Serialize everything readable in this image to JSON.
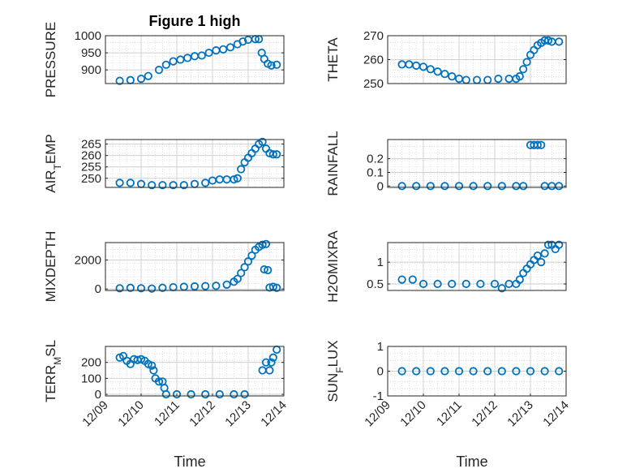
{
  "figure_title": "Figure 1 high",
  "marker_color": "#0072BD",
  "chart_data": [
    {
      "type": "scatter",
      "title": "Figure 1 high",
      "ylabel": "PRESSURE",
      "xlabel": "",
      "xlim": [
        0,
        5
      ],
      "ylim": [
        860,
        1000
      ],
      "yticks": [
        900,
        950,
        1000
      ],
      "yticklabels": [
        "900",
        "950",
        "1000"
      ],
      "xticks": [],
      "xticklabels": [],
      "grid": true,
      "points": [
        [
          0.4,
          868
        ],
        [
          0.7,
          870
        ],
        [
          1.0,
          874
        ],
        [
          1.2,
          882
        ],
        [
          1.5,
          900
        ],
        [
          1.7,
          915
        ],
        [
          1.9,
          925
        ],
        [
          2.1,
          930
        ],
        [
          2.3,
          935
        ],
        [
          2.5,
          940
        ],
        [
          2.7,
          942
        ],
        [
          2.9,
          950
        ],
        [
          3.1,
          957
        ],
        [
          3.3,
          960
        ],
        [
          3.5,
          966
        ],
        [
          3.7,
          975
        ],
        [
          3.85,
          983
        ],
        [
          4.0,
          988
        ],
        [
          4.2,
          990
        ],
        [
          4.3,
          990
        ],
        [
          4.38,
          950
        ],
        [
          4.45,
          932
        ],
        [
          4.55,
          918
        ],
        [
          4.65,
          913
        ],
        [
          4.8,
          915
        ]
      ]
    },
    {
      "type": "scatter",
      "ylabel": "THETA",
      "xlabel": "",
      "xlim": [
        0,
        5
      ],
      "ylim": [
        250,
        270
      ],
      "yticks": [
        250,
        260,
        270
      ],
      "yticklabels": [
        "250",
        "260",
        "270"
      ],
      "xticks": [],
      "xticklabels": [],
      "grid": true,
      "points": [
        [
          0.4,
          258
        ],
        [
          0.6,
          258
        ],
        [
          0.8,
          257.5
        ],
        [
          1.0,
          257
        ],
        [
          1.2,
          256
        ],
        [
          1.4,
          255
        ],
        [
          1.6,
          254
        ],
        [
          1.8,
          253
        ],
        [
          2.0,
          252
        ],
        [
          2.2,
          251.5
        ],
        [
          2.5,
          251.5
        ],
        [
          2.8,
          251.5
        ],
        [
          3.1,
          252
        ],
        [
          3.4,
          252
        ],
        [
          3.6,
          252
        ],
        [
          3.7,
          253
        ],
        [
          3.8,
          256
        ],
        [
          3.9,
          259
        ],
        [
          4.0,
          262
        ],
        [
          4.1,
          264
        ],
        [
          4.2,
          266
        ],
        [
          4.3,
          267
        ],
        [
          4.4,
          268
        ],
        [
          4.5,
          268
        ],
        [
          4.6,
          267.5
        ],
        [
          4.8,
          267.5
        ]
      ]
    },
    {
      "type": "scatter",
      "ylabel": "AIR_TEMP",
      "xlabel": "",
      "xlim": [
        0,
        5
      ],
      "ylim": [
        246,
        267
      ],
      "yticks": [
        250,
        255,
        260,
        265
      ],
      "yticklabels": [
        "250",
        "255",
        "260",
        "265"
      ],
      "xticks": [],
      "xticklabels": [],
      "grid": true,
      "points": [
        [
          0.4,
          248
        ],
        [
          0.7,
          248
        ],
        [
          1.0,
          247.5
        ],
        [
          1.3,
          247
        ],
        [
          1.6,
          247
        ],
        [
          1.9,
          247
        ],
        [
          2.2,
          247
        ],
        [
          2.5,
          247.5
        ],
        [
          2.8,
          248
        ],
        [
          3.0,
          249
        ],
        [
          3.2,
          249.5
        ],
        [
          3.4,
          249.5
        ],
        [
          3.6,
          249.5
        ],
        [
          3.7,
          250
        ],
        [
          3.8,
          254
        ],
        [
          3.9,
          257
        ],
        [
          4.0,
          259
        ],
        [
          4.1,
          261
        ],
        [
          4.2,
          263
        ],
        [
          4.3,
          265
        ],
        [
          4.4,
          266
        ],
        [
          4.5,
          263
        ],
        [
          4.6,
          261
        ],
        [
          4.7,
          260.5
        ],
        [
          4.8,
          260.5
        ]
      ]
    },
    {
      "type": "scatter",
      "ylabel": "RAINFALL",
      "xlabel": "",
      "xlim": [
        0,
        5
      ],
      "ylim": [
        -0.01,
        0.34
      ],
      "yticks": [
        0,
        0.1,
        0.2
      ],
      "yticklabels": [
        "0",
        "0.1",
        "0.2"
      ],
      "xticks": [],
      "xticklabels": [],
      "grid": true,
      "points": [
        [
          0.4,
          0
        ],
        [
          0.8,
          0
        ],
        [
          1.2,
          0
        ],
        [
          1.6,
          0
        ],
        [
          2.0,
          0
        ],
        [
          2.4,
          0
        ],
        [
          2.8,
          0
        ],
        [
          3.2,
          0
        ],
        [
          3.6,
          0
        ],
        [
          3.8,
          0
        ],
        [
          4.0,
          0.3
        ],
        [
          4.1,
          0.3
        ],
        [
          4.2,
          0.3
        ],
        [
          4.3,
          0.3
        ],
        [
          4.4,
          0
        ],
        [
          4.6,
          0
        ],
        [
          4.8,
          0
        ]
      ]
    },
    {
      "type": "scatter",
      "ylabel": "MIXDEPTH",
      "xlabel": "",
      "xlim": [
        0,
        5
      ],
      "ylim": [
        -100,
        3200
      ],
      "yticks": [
        0,
        2000
      ],
      "yticklabels": [
        "0",
        "2000"
      ],
      "xticks": [],
      "xticklabels": [],
      "grid": true,
      "points": [
        [
          0.4,
          50
        ],
        [
          0.7,
          80
        ],
        [
          1.0,
          50
        ],
        [
          1.3,
          30
        ],
        [
          1.6,
          80
        ],
        [
          1.9,
          120
        ],
        [
          2.2,
          150
        ],
        [
          2.5,
          180
        ],
        [
          2.8,
          200
        ],
        [
          3.1,
          220
        ],
        [
          3.4,
          300
        ],
        [
          3.6,
          500
        ],
        [
          3.7,
          700
        ],
        [
          3.8,
          1100
        ],
        [
          3.9,
          1500
        ],
        [
          4.0,
          1900
        ],
        [
          4.1,
          2300
        ],
        [
          4.2,
          2700
        ],
        [
          4.3,
          2900
        ],
        [
          4.4,
          3050
        ],
        [
          4.5,
          3100
        ],
        [
          4.45,
          1350
        ],
        [
          4.55,
          1300
        ],
        [
          4.6,
          100
        ],
        [
          4.7,
          150
        ],
        [
          4.8,
          80
        ]
      ]
    },
    {
      "type": "scatter",
      "ylabel": "H2OMIXRA",
      "xlabel": "",
      "xlim": [
        0,
        5
      ],
      "ylim": [
        0.35,
        1.45
      ],
      "yticks": [
        0.5,
        1
      ],
      "yticklabels": [
        "0.5",
        "1"
      ],
      "xticks": [],
      "xticklabels": [],
      "grid": true,
      "points": [
        [
          0.4,
          0.6
        ],
        [
          0.7,
          0.6
        ],
        [
          1.0,
          0.5
        ],
        [
          1.4,
          0.5
        ],
        [
          1.8,
          0.5
        ],
        [
          2.2,
          0.5
        ],
        [
          2.6,
          0.5
        ],
        [
          3.0,
          0.5
        ],
        [
          3.2,
          0.4
        ],
        [
          3.4,
          0.5
        ],
        [
          3.6,
          0.5
        ],
        [
          3.7,
          0.6
        ],
        [
          3.8,
          0.75
        ],
        [
          3.9,
          0.85
        ],
        [
          4.0,
          0.95
        ],
        [
          4.1,
          1.05
        ],
        [
          4.2,
          1.15
        ],
        [
          4.3,
          1.0
        ],
        [
          4.4,
          1.2
        ],
        [
          4.5,
          1.4
        ],
        [
          4.6,
          1.4
        ],
        [
          4.7,
          1.3
        ],
        [
          4.8,
          1.4
        ]
      ]
    },
    {
      "type": "scatter",
      "ylabel": "TERR_MSL",
      "xlabel": "Time",
      "xlim": [
        0,
        5
      ],
      "ylim": [
        -10,
        300
      ],
      "yticks": [
        0,
        100,
        200
      ],
      "yticklabels": [
        "0",
        "100",
        "200"
      ],
      "xticks": [
        0,
        1,
        2,
        3,
        4,
        5
      ],
      "xticklabels": [
        "12/09",
        "12/10",
        "12/11",
        "12/12",
        "12/13",
        "12/14"
      ],
      "grid": true,
      "points": [
        [
          0.4,
          230
        ],
        [
          0.5,
          240
        ],
        [
          0.6,
          210
        ],
        [
          0.7,
          190
        ],
        [
          0.8,
          220
        ],
        [
          0.9,
          215
        ],
        [
          1.0,
          220
        ],
        [
          1.1,
          210
        ],
        [
          1.2,
          190
        ],
        [
          1.3,
          180
        ],
        [
          1.35,
          150
        ],
        [
          1.4,
          100
        ],
        [
          1.5,
          80
        ],
        [
          1.6,
          80
        ],
        [
          1.65,
          40
        ],
        [
          1.7,
          0
        ],
        [
          2.0,
          0
        ],
        [
          2.4,
          0
        ],
        [
          2.8,
          0
        ],
        [
          3.2,
          0
        ],
        [
          3.6,
          0
        ],
        [
          3.9,
          0
        ],
        [
          4.4,
          150
        ],
        [
          4.5,
          200
        ],
        [
          4.6,
          150
        ],
        [
          4.65,
          200
        ],
        [
          4.7,
          230
        ],
        [
          4.8,
          280
        ]
      ]
    },
    {
      "type": "scatter",
      "ylabel": "SUN_FLUX",
      "xlabel": "Time",
      "xlim": [
        0,
        5
      ],
      "ylim": [
        -1,
        1
      ],
      "yticks": [
        -1,
        0,
        1
      ],
      "yticklabels": [
        "-1",
        "0",
        "1"
      ],
      "xticks": [
        0,
        1,
        2,
        3,
        4,
        5
      ],
      "xticklabels": [
        "12/09",
        "12/10",
        "12/11",
        "12/12",
        "12/13",
        "12/14"
      ],
      "grid": true,
      "points": [
        [
          0.4,
          0
        ],
        [
          0.8,
          0
        ],
        [
          1.2,
          0
        ],
        [
          1.6,
          0
        ],
        [
          2.0,
          0
        ],
        [
          2.4,
          0
        ],
        [
          2.8,
          0
        ],
        [
          3.2,
          0
        ],
        [
          3.6,
          0
        ],
        [
          4.0,
          0
        ],
        [
          4.4,
          0
        ],
        [
          4.8,
          0
        ]
      ]
    }
  ]
}
